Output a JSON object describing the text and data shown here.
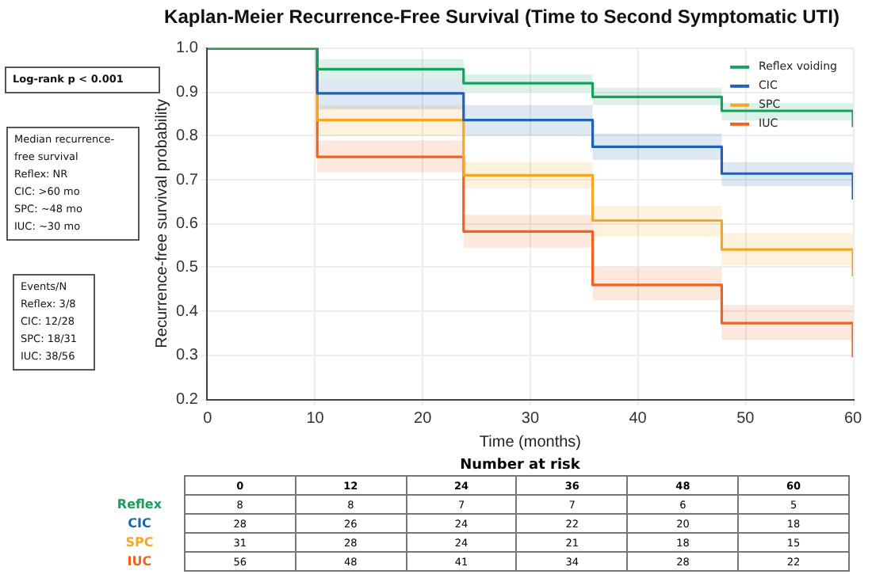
{
  "chart_data": [
    {
      "type": "step",
      "title": "Kaplan-Meier Recurrence-Free Survival (Time to Second Symptomatic UTI)",
      "xlabel": "Time (months)",
      "ylabel": "Recurrence-free survival probability",
      "x": [
        0,
        10.2,
        23.8,
        35.8,
        47.8,
        60
      ],
      "series": [
        {
          "name": "Reflex voiding",
          "color": "#16a05d",
          "values": [
            1.0,
            0.952,
            0.92,
            0.889,
            0.857,
            0.82
          ],
          "lower": [
            1.0,
            0.93,
            0.9,
            0.87,
            0.835,
            0.82
          ],
          "upper": [
            1.0,
            0.975,
            0.94,
            0.91,
            0.875,
            0.875
          ]
        },
        {
          "name": "CIC",
          "color": "#1f63b0",
          "values": [
            1.0,
            0.897,
            0.836,
            0.775,
            0.714,
            0.655
          ],
          "lower": [
            1.0,
            0.86,
            0.8,
            0.745,
            0.685,
            0.655
          ],
          "upper": [
            1.0,
            0.93,
            0.87,
            0.805,
            0.74,
            0.74
          ]
        },
        {
          "name": "SPC",
          "color": "#f5a623",
          "values": [
            1.0,
            0.836,
            0.71,
            0.607,
            0.541,
            0.48
          ],
          "lower": [
            1.0,
            0.8,
            0.68,
            0.57,
            0.505,
            0.48
          ],
          "upper": [
            1.0,
            0.87,
            0.74,
            0.64,
            0.578,
            0.578
          ]
        },
        {
          "name": "IUC",
          "color": "#f0621f",
          "values": [
            1.0,
            0.752,
            0.582,
            0.46,
            0.373,
            0.295
          ],
          "lower": [
            1.0,
            0.717,
            0.545,
            0.425,
            0.335,
            0.295
          ],
          "upper": [
            1.0,
            0.79,
            0.62,
            0.5,
            0.415,
            0.415
          ]
        }
      ],
      "xlim": [
        0,
        60
      ],
      "xticks": [
        0,
        10,
        20,
        30,
        40,
        50,
        60
      ],
      "ylim": [
        0.2,
        1.0
      ],
      "yticks": [
        {
          "value": 0.2,
          "label": "0.2"
        },
        {
          "value": 0.3,
          "label": "0.3"
        },
        {
          "value": 0.4,
          "label": "0.4"
        },
        {
          "value": 0.5,
          "label": "0.5"
        },
        {
          "value": 0.6,
          "label": "0.6"
        },
        {
          "value": 0.7,
          "label": "0.7"
        },
        {
          "value": 0.8,
          "label": "0.8"
        },
        {
          "value": 0.9,
          "label": "0.9"
        },
        {
          "value": 1,
          "label": "1.0"
        }
      ],
      "grid": true,
      "legend": "top right",
      "annotations": [
        "Log-rank p < 0.001",
        "Median recurrence-free survival\nReflex: NR\nCIC: >60 mo\nSPC: ~48 mo\nIUC: ~30 mo",
        "Events/N\nReflex: 3/8\nCIC: 12/28\nSPC: 18/31\nIUC: 38/56"
      ]
    },
    {
      "type": "heatmap",
      "data_labels": true,
      "title": "Number at risk",
      "categories": [
        "0",
        "12",
        "24",
        "36",
        "48",
        "60"
      ],
      "y_categories": [
        "Reflex",
        "CIC",
        "SPC",
        "IUC"
      ],
      "colors": [
        "#16a05d",
        "#1f63b0",
        "#f5a623",
        "#f0621f"
      ],
      "cells": [
        [
          8,
          8,
          7,
          7,
          6,
          5
        ],
        [
          28,
          26,
          24,
          22,
          20,
          18
        ],
        [
          31,
          28,
          24,
          21,
          18,
          15
        ],
        [
          56,
          48,
          41,
          34,
          28,
          22
        ]
      ]
    }
  ]
}
